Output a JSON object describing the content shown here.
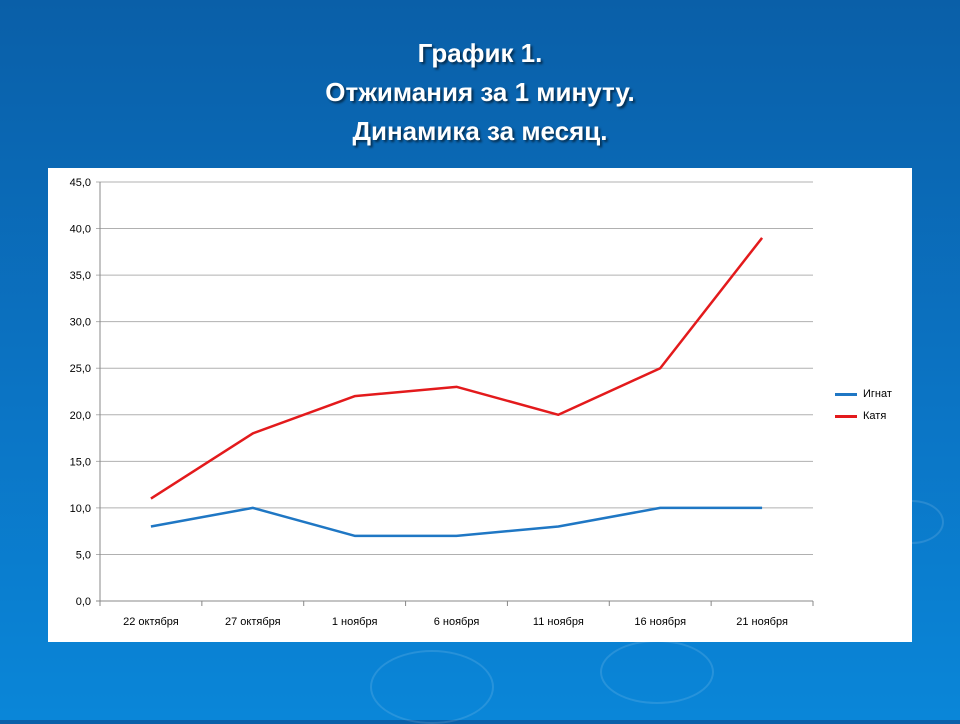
{
  "chart_data": {
    "type": "line",
    "title": [
      "График 1.",
      "Отжимания за 1 минуту.",
      "Динамика за месяц."
    ],
    "categories": [
      "22 октября",
      "27 октября",
      "1 ноября",
      "6 ноября",
      "11 ноября",
      "16 ноября",
      "21 ноября"
    ],
    "series": [
      {
        "name": "Игнат",
        "color": "#1f77c4",
        "values": [
          8,
          10,
          7,
          7,
          8,
          10,
          10
        ]
      },
      {
        "name": "Катя",
        "color": "#e31a1c",
        "values": [
          11,
          18,
          22,
          23,
          20,
          25,
          39
        ]
      }
    ],
    "ylim": [
      0,
      45
    ],
    "yticks": [
      "0,0",
      "5,0",
      "10,0",
      "15,0",
      "20,0",
      "25,0",
      "30,0",
      "35,0",
      "40,0",
      "45,0"
    ],
    "grid": true,
    "legend": "right"
  }
}
